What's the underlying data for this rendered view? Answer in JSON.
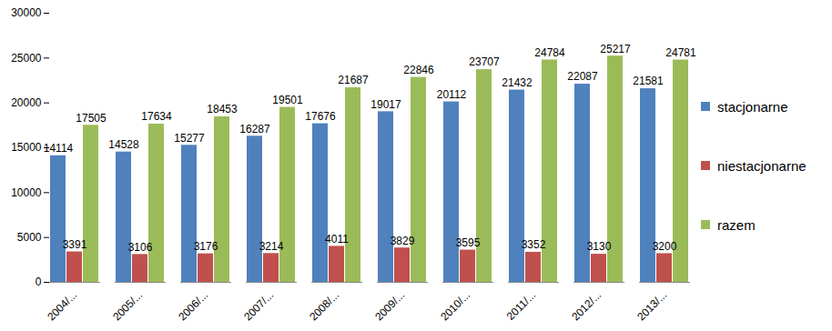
{
  "chart_data": {
    "type": "bar",
    "categories": [
      "2004/...",
      "2005/...",
      "2006/...",
      "2007/...",
      "2008/...",
      "2009/...",
      "2010/...",
      "2011/...",
      "2012/...",
      "2013/..."
    ],
    "series": [
      {
        "name": "stacjonarne",
        "color": "#4f81bd",
        "values": [
          14114,
          14528,
          15277,
          16287,
          17676,
          19017,
          20112,
          21432,
          22087,
          21581
        ]
      },
      {
        "name": "niestacjonarne",
        "color": "#c0504d",
        "values": [
          3391,
          3106,
          3176,
          3214,
          4011,
          3829,
          3595,
          3352,
          3130,
          3200
        ]
      },
      {
        "name": "razem",
        "color": "#9bbb59",
        "values": [
          17505,
          17634,
          18453,
          19501,
          21687,
          22846,
          23707,
          24784,
          25217,
          24781
        ]
      }
    ],
    "ylim": [
      0,
      30000
    ],
    "yticks": [
      0,
      5000,
      10000,
      15000,
      20000,
      25000,
      30000
    ],
    "grid": false,
    "legend": "right",
    "data_labels": true
  }
}
